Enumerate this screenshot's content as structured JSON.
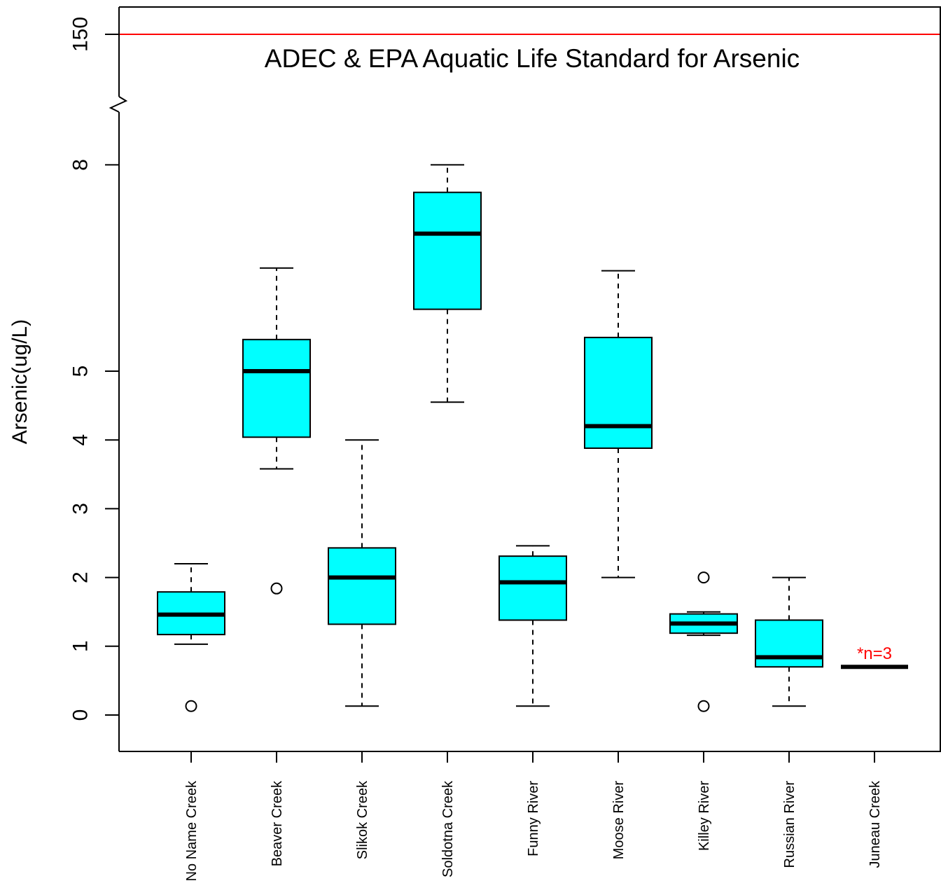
{
  "chart_data": {
    "type": "box",
    "title": "",
    "xlabel": "",
    "ylabel": "Arsenic(ug/L)",
    "y_scale": "broken axis (0–8 linear, break, 150)",
    "ylim": [
      0,
      150
    ],
    "y_ticks": [
      0,
      1,
      2,
      3,
      4,
      5,
      8,
      150
    ],
    "y_tick_labels": [
      "0",
      "1",
      "2",
      "3",
      "4",
      "5",
      "8",
      "150"
    ],
    "grid": false,
    "colors": {
      "box_fill": "#00ffff",
      "box_stroke": "#000000",
      "reference_line": "#ff0000",
      "annotation": "#ff0000"
    },
    "reference_line": {
      "value": 150,
      "label": "ADEC & EPA Aquatic Life Standard for Arsenic"
    },
    "categories": [
      "No Name Creek",
      "Beaver Creek",
      "Slikok Creek",
      "Soldotna Creek",
      "Funny River",
      "Moose River",
      "Killey River",
      "Russian River",
      "Juneau Creek"
    ],
    "boxes": [
      {
        "category": "No Name Creek",
        "whisker_low": 1.03,
        "q1": 1.17,
        "median": 1.46,
        "q3": 1.79,
        "whisker_high": 2.2,
        "outliers": [
          0.13
        ]
      },
      {
        "category": "Beaver Creek",
        "whisker_low": 3.58,
        "q1": 4.04,
        "median": 5.0,
        "q3": 5.46,
        "whisker_high": 6.5,
        "outliers": [
          1.84
        ]
      },
      {
        "category": "Slikok Creek",
        "whisker_low": 0.13,
        "q1": 1.32,
        "median": 2.0,
        "q3": 2.43,
        "whisker_high": 4.0,
        "outliers": []
      },
      {
        "category": "Soldotna Creek",
        "whisker_low": 4.55,
        "q1": 5.9,
        "median": 7.0,
        "q3": 7.6,
        "whisker_high": 8.0,
        "outliers": []
      },
      {
        "category": "Funny River",
        "whisker_low": 0.13,
        "q1": 1.38,
        "median": 1.93,
        "q3": 2.31,
        "whisker_high": 2.46,
        "outliers": []
      },
      {
        "category": "Moose River",
        "whisker_low": 2.0,
        "q1": 3.88,
        "median": 4.2,
        "q3": 5.49,
        "whisker_high": 6.46,
        "outliers": []
      },
      {
        "category": "Killey River",
        "whisker_low": 1.16,
        "q1": 1.19,
        "median": 1.33,
        "q3": 1.47,
        "whisker_high": 1.5,
        "outliers": [
          2.0,
          0.13
        ]
      },
      {
        "category": "Russian River",
        "whisker_low": 0.13,
        "q1": 0.7,
        "median": 0.84,
        "q3": 1.38,
        "whisker_high": 2.0,
        "outliers": []
      },
      {
        "category": "Juneau Creek",
        "whisker_low": 0.7,
        "q1": 0.7,
        "median": 0.7,
        "q3": 0.7,
        "whisker_high": 0.7,
        "outliers": []
      }
    ],
    "annotations": [
      {
        "category": "Juneau Creek",
        "text": "*n=3"
      }
    ]
  }
}
